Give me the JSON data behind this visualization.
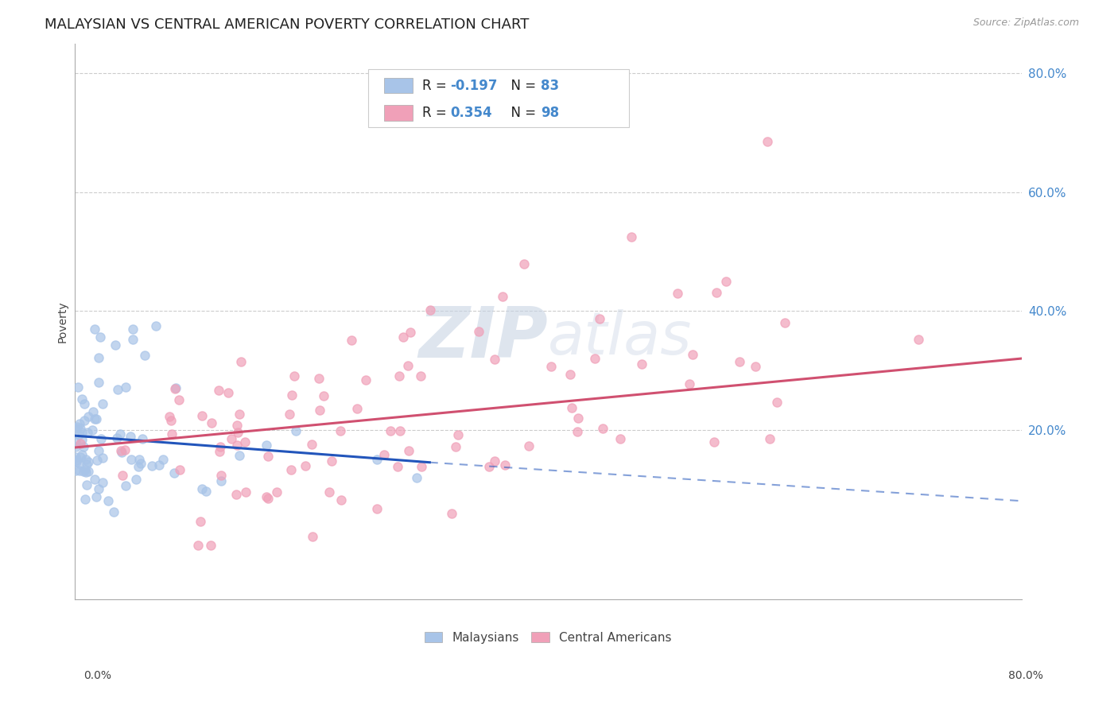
{
  "title": "MALAYSIAN VS CENTRAL AMERICAN POVERTY CORRELATION CHART",
  "source": "Source: ZipAtlas.com",
  "ylabel": "Poverty",
  "legend_labels": [
    "Malaysians",
    "Central Americans"
  ],
  "blue_color": "#a8c4e8",
  "pink_color": "#f0a0b8",
  "blue_line_color": "#2255bb",
  "pink_line_color": "#d05070",
  "watermark_zip": "ZIP",
  "watermark_atlas": "atlas",
  "ytick_labels": [
    "20.0%",
    "40.0%",
    "60.0%",
    "80.0%"
  ],
  "ytick_values": [
    0.2,
    0.4,
    0.6,
    0.8
  ],
  "xlim": [
    0.0,
    0.8
  ],
  "ylim": [
    -0.085,
    0.85
  ],
  "blue_R": -0.197,
  "blue_N": 83,
  "pink_R": 0.354,
  "pink_N": 98,
  "title_fontsize": 13,
  "source_fontsize": 9,
  "tick_color": "#4488cc",
  "grid_color": "#cccccc",
  "blue_line_solid_end": 0.3,
  "blue_line_start_y": 0.19,
  "blue_line_end_y": 0.08,
  "pink_line_start_y": 0.17,
  "pink_line_end_y": 0.32
}
